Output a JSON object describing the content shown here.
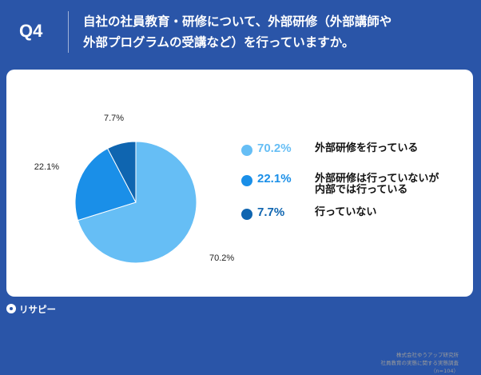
{
  "header": {
    "q_label": "Q4",
    "question": "自社の社員教育・研修について、外部研修（外部講師や\n外部プログラムの受講など）を行っていますか。"
  },
  "chart_data": {
    "type": "pie",
    "title": "",
    "slices": [
      {
        "label": "外部研修を行っている",
        "value": 70.2,
        "display": "70.2%",
        "color": "#66bef5"
      },
      {
        "label": "外部研修は行っていないが\n内部では行っている",
        "value": 22.1,
        "display": "22.1%",
        "color": "#1a8fe8"
      },
      {
        "label": "行っていない",
        "value": 7.7,
        "display": "7.7%",
        "color": "#0f65b0"
      }
    ],
    "start_angle": "12 o'clock",
    "direction": "clockwise",
    "legend_position": "right"
  },
  "source": {
    "text": "株式会社ゆうアップ研究所\n社員教育の実態に関する実態調査\n（n=104）"
  },
  "brand": {
    "name": "リサピー",
    "icon": "risapy-logo-icon"
  }
}
